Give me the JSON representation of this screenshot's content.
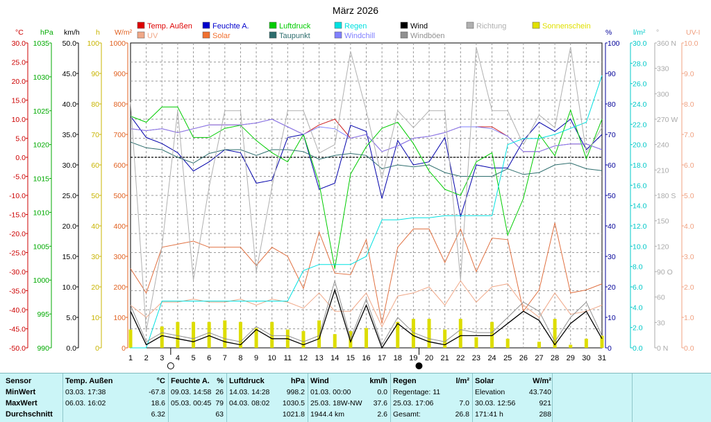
{
  "chart_data": {
    "type": "line",
    "title": "März 2026",
    "x": [
      1,
      2,
      3,
      4,
      5,
      6,
      7,
      8,
      9,
      10,
      11,
      12,
      13,
      14,
      15,
      16,
      17,
      18,
      19,
      20,
      21,
      22,
      23,
      24,
      25,
      26,
      27,
      28,
      29,
      30,
      31
    ],
    "xlim": [
      1,
      31
    ],
    "grid": true,
    "axes": {
      "temp": {
        "unit": "°C",
        "color": "#cc0000",
        "range": [
          -50,
          30
        ],
        "ticks": [
          "30.0",
          "25.0",
          "20.0",
          "15.0",
          "10.0",
          "5.0",
          "0.0",
          "-5.0",
          "-10.0",
          "-15.0",
          "-20.0",
          "-25.0",
          "-30.0",
          "-35.0",
          "-40.0",
          "-45.0",
          "-50.0"
        ]
      },
      "pressure": {
        "unit": "hPa",
        "color": "#00aa00",
        "range": [
          990,
          1040
        ],
        "ticks": [
          "1035",
          "1030",
          "1025",
          "1020",
          "1015",
          "1010",
          "1005",
          "1000",
          "995",
          "990"
        ]
      },
      "wind": {
        "unit": "km/h",
        "color": "#000000",
        "range": [
          0,
          50
        ],
        "ticks": [
          "50.0",
          "45.0",
          "40.0",
          "35.0",
          "30.0",
          "25.0",
          "20.0",
          "15.0",
          "10.0",
          "5.0",
          "0.0"
        ]
      },
      "sun": {
        "unit": "h",
        "color": "#c8b400",
        "range": [
          0,
          100
        ],
        "ticks": [
          "100",
          "90",
          "80",
          "70",
          "60",
          "50",
          "40",
          "30",
          "20",
          "10",
          "0"
        ]
      },
      "solar": {
        "unit": "W/m²",
        "color": "#e06020",
        "range": [
          0,
          1000
        ],
        "ticks": [
          "1000",
          "900",
          "800",
          "700",
          "600",
          "500",
          "400",
          "300",
          "200",
          "100",
          "0"
        ]
      },
      "humidity": {
        "unit": "%",
        "color": "#000099",
        "range": [
          0,
          100
        ],
        "ticks": [
          "100",
          "90",
          "80",
          "70",
          "60",
          "50",
          "40",
          "30",
          "20",
          "10",
          "0"
        ]
      },
      "rain": {
        "unit": "l/m²",
        "color": "#00c8c8",
        "range": [
          0,
          30
        ],
        "ticks": [
          "30.0",
          "28.0",
          "26.0",
          "24.0",
          "22.0",
          "20.0",
          "18.0",
          "16.0",
          "14.0",
          "12.0",
          "10.0",
          "8.0",
          "6.0",
          "4.0",
          "2.0",
          "0.0"
        ]
      },
      "direction": {
        "unit": "°",
        "color": "#aaaaaa",
        "range": [
          0,
          360
        ],
        "ticks": [
          "360 N",
          "330",
          "300",
          "270 W",
          "240",
          "210",
          "180 S",
          "150",
          "120",
          "90 O",
          "60",
          "30",
          "0 N"
        ]
      },
      "uv": {
        "unit": "UV-I",
        "color": "#f0a080",
        "range": [
          0,
          10
        ],
        "ticks": [
          "10.0",
          "9.0",
          "8.0",
          "7.0",
          "6.0",
          "5.0",
          "4.0",
          "3.0",
          "2.0",
          "1.0",
          "0.0"
        ]
      }
    },
    "legend": [
      {
        "name": "Temp. Außen",
        "color": "#dd0000"
      },
      {
        "name": "UV",
        "color": "#f0a888"
      },
      {
        "name": "Feuchte A.",
        "color": "#0000cc"
      },
      {
        "name": "Solar",
        "color": "#f07030"
      },
      {
        "name": "Luftdruck",
        "color": "#00cc00"
      },
      {
        "name": "Taupunkt",
        "color": "#2e6e6e"
      },
      {
        "name": "Regen",
        "color": "#00e0e0"
      },
      {
        "name": "Windchill",
        "color": "#8080ff"
      },
      {
        "name": "Wind",
        "color": "#000000"
      },
      {
        "name": "Windböen",
        "color": "#909090"
      },
      {
        "name": "Richtung",
        "color": "#b0b0b0"
      },
      {
        "name": "Sonnenschein",
        "color": "#e0e000"
      }
    ],
    "series": [
      {
        "name": "Temp. Außen",
        "axis": "temp",
        "color": "#cc2222",
        "values": [
          7.5,
          7,
          7.5,
          6.5,
          7.5,
          8.5,
          8.5,
          8.5,
          9,
          10,
          8,
          6,
          8.5,
          10,
          5,
          6,
          1.5,
          3,
          5,
          5.5,
          6.5,
          8,
          8,
          8,
          5.5,
          1.5,
          1.5,
          3,
          3.5,
          3.5,
          2
        ]
      },
      {
        "name": "Feuchte A.",
        "axis": "humidity",
        "color": "#0000aa",
        "values": [
          76,
          69,
          67,
          64,
          58,
          61,
          65,
          64,
          54,
          55,
          69,
          70,
          52,
          54,
          73,
          71,
          49,
          68,
          60,
          61,
          69,
          43,
          60,
          59,
          59,
          68,
          74,
          71,
          75,
          65,
          70
        ]
      },
      {
        "name": "Luftdruck",
        "axis": "pressure",
        "color": "#00cc00",
        "values": [
          1028,
          1027,
          1029.5,
          1029.5,
          1024.5,
          1024.5,
          1026,
          1026.5,
          1024,
          1022,
          1020.5,
          1025,
          1017,
          1003,
          1018.5,
          1023,
          1026,
          1027,
          1023.5,
          1019,
          1016,
          1015,
          1020.5,
          1022,
          1008.5,
          1014.5,
          1025,
          1021.5,
          1029,
          1021,
          1027.5
        ]
      },
      {
        "name": "Taupunkt",
        "axis": "temp",
        "color": "#2e6e6e",
        "values": [
          4,
          2.5,
          2,
          0,
          -1.5,
          1,
          2,
          2,
          0.5,
          2,
          2,
          1.5,
          -0.5,
          0.5,
          1,
          0.5,
          -3,
          -2,
          -2.5,
          -2,
          -4,
          -5,
          -5,
          -5,
          -3,
          -4.5,
          -4,
          -2,
          -1.5,
          -3,
          -3.5
        ]
      },
      {
        "name": "Windchill",
        "axis": "temp",
        "color": "#8080ff",
        "values": [
          7.5,
          7,
          7.5,
          6.5,
          7.5,
          8.5,
          8.5,
          8.5,
          9,
          10,
          8,
          6,
          8,
          7.5,
          5,
          6,
          1.5,
          3,
          5,
          5.5,
          6.5,
          8,
          8,
          7.5,
          5.5,
          1.5,
          1.5,
          3,
          3.5,
          3.5,
          2
        ]
      },
      {
        "name": "Solar",
        "axis": "solar",
        "color": "#e07040",
        "values": [
          260,
          180,
          330,
          340,
          350,
          330,
          330,
          330,
          270,
          330,
          300,
          195,
          380,
          245,
          240,
          355,
          80,
          330,
          390,
          390,
          280,
          390,
          250,
          360,
          355,
          120,
          190,
          410,
          180,
          190,
          210
        ]
      },
      {
        "name": "UV",
        "axis": "uv",
        "color": "#f0a888",
        "values": [
          1.4,
          1,
          1.5,
          1.5,
          1.6,
          1.5,
          1.5,
          1.6,
          1.4,
          1.6,
          1.5,
          1.3,
          1.8,
          1.2,
          1.2,
          1.8,
          0.7,
          1.7,
          1.8,
          2,
          1.4,
          2.2,
          1.5,
          2,
          2.1,
          1.4,
          1,
          1.8,
          1.1,
          1.2,
          1.4
        ]
      },
      {
        "name": "Regen",
        "axis": "rain",
        "color": "#00e0e0",
        "values": [
          0,
          0,
          4.6,
          4.6,
          4.6,
          4.6,
          4.6,
          4.6,
          4.6,
          4.6,
          4.6,
          7.6,
          8.2,
          8.2,
          8.2,
          9,
          12.6,
          12.6,
          12.8,
          12.8,
          13,
          13,
          13,
          13,
          20,
          20.6,
          20.6,
          21,
          21.6,
          22.2,
          26.8
        ]
      },
      {
        "name": "Wind",
        "axis": "wind",
        "color": "#000000",
        "values": [
          6,
          0.5,
          2,
          1.5,
          1,
          2,
          1,
          0.5,
          3,
          1.5,
          1.5,
          0.5,
          1.5,
          9.5,
          1,
          7,
          0,
          4,
          2,
          1,
          0.5,
          2,
          2,
          2,
          4,
          6,
          4.5,
          0.5,
          4,
          6,
          1.5
        ]
      },
      {
        "name": "Windböen",
        "axis": "wind",
        "color": "#909090",
        "values": [
          7,
          1,
          2.5,
          2,
          1.5,
          2.5,
          1.5,
          1,
          3.5,
          2,
          2,
          1,
          2,
          11,
          1.5,
          8,
          0.5,
          5,
          2.5,
          1.5,
          1,
          3,
          2.5,
          2.5,
          5,
          7.5,
          6,
          1,
          5,
          7.5,
          2
        ]
      },
      {
        "name": "Richtung",
        "axis": "direction",
        "color": "#b0b0b0",
        "values": [
          290,
          20,
          120,
          280,
          80,
          190,
          280,
          280,
          90,
          190,
          280,
          280,
          230,
          240,
          350,
          280,
          200,
          280,
          260,
          280,
          280,
          80,
          355,
          280,
          280,
          240,
          275,
          260,
          355,
          230,
          260
        ]
      },
      {
        "name": "Sonnenschein",
        "axis": "sun",
        "color": "#dddd00",
        "type": "bar",
        "values": [
          6,
          0,
          7,
          8.5,
          8.5,
          8.5,
          9,
          8.5,
          6.5,
          8.5,
          6,
          5.5,
          9,
          4.5,
          5.5,
          6.5,
          0,
          8.5,
          9.5,
          9.5,
          6,
          9.5,
          3.5,
          8.5,
          3,
          0,
          2,
          9.5,
          1,
          3,
          4
        ]
      }
    ],
    "moon_phases": [
      {
        "day": 3.6,
        "phase": "new"
      },
      {
        "day": 19.4,
        "phase": "full"
      }
    ],
    "reference_line": {
      "axis": "temp",
      "value": 0
    }
  },
  "stats": {
    "row_labels": [
      "Sensor",
      "MinWert",
      "MaxWert",
      "Durchschnitt"
    ],
    "groups": [
      {
        "title": "Temp. Außen",
        "unit": "°C",
        "min": {
          "time": "03.03.  17:38",
          "value": "-67.8"
        },
        "max": {
          "time": "06.03.  16:02",
          "value": "18.6"
        },
        "avg": {
          "time": "",
          "value": "6.32"
        }
      },
      {
        "title": "Feuchte A.",
        "unit": "%",
        "min": {
          "time": "09.03.  14:58",
          "value": "26"
        },
        "max": {
          "time": "05.03.  00:45",
          "value": "79"
        },
        "avg": {
          "time": "",
          "value": "63"
        }
      },
      {
        "title": "Luftdruck",
        "unit": "hPa",
        "min": {
          "time": "14.03.  14:28",
          "value": "998.2"
        },
        "max": {
          "time": "04.03.  08:02",
          "value": "1030.5"
        },
        "avg": {
          "time": "",
          "value": "1021.8"
        }
      },
      {
        "title": "Wind",
        "unit": "km/h",
        "min": {
          "time": "01.03.  00:00",
          "value": "0.0"
        },
        "max": {
          "time": "25.03.  18W-NW",
          "value": "37.6"
        },
        "avg": {
          "time": "1944.4 km",
          "value": "2.6"
        }
      },
      {
        "title": "Regen",
        "unit": "l/m²",
        "min": {
          "time": "Regentage: 11",
          "value": ""
        },
        "max": {
          "time": "25.03.  17:06",
          "value": "7.0"
        },
        "avg": {
          "time": "Gesamt:",
          "value": "26.8"
        }
      },
      {
        "title": "Solar",
        "unit": "W/m²",
        "min": {
          "time": "Elevation",
          "value": "43.740"
        },
        "max": {
          "time": "30.03.  12:56",
          "value": "921"
        },
        "avg": {
          "time": "171:41 h",
          "value": "288"
        }
      }
    ]
  }
}
